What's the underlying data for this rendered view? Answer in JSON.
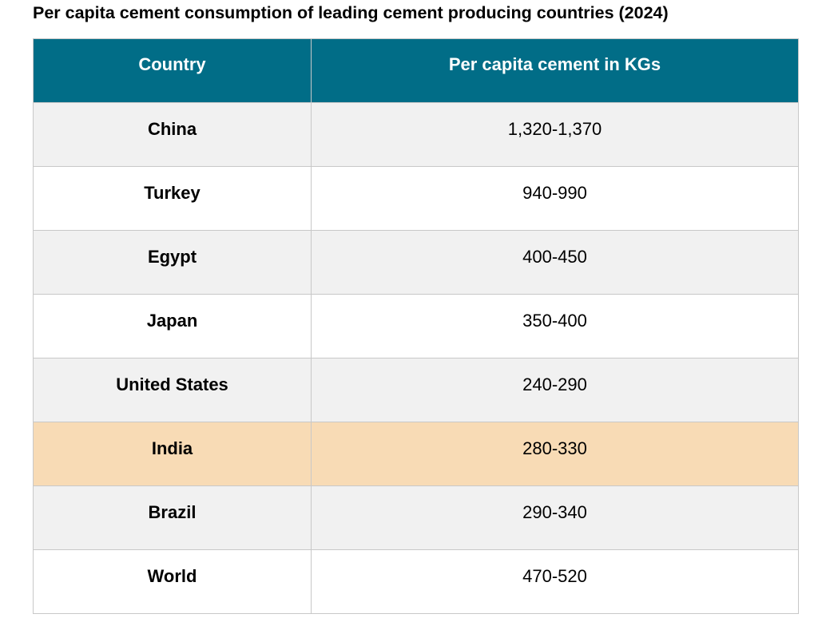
{
  "title": "Per capita cement consumption of leading cement producing countries (2024)",
  "colors": {
    "header_bg": "#016d87",
    "header_text": "#ffffff",
    "row_alt": "#f1f1f1",
    "row_plain": "#ffffff",
    "highlight": "#f8dbb5"
  },
  "chart_data": {
    "type": "table",
    "title": "Per capita cement consumption of leading cement producing countries (2024)",
    "columns": [
      "Country",
      "Per capita cement in KGs"
    ],
    "rows": [
      [
        "China",
        "1,320-1,370"
      ],
      [
        "Turkey",
        "940-990"
      ],
      [
        "Egypt",
        "400-450"
      ],
      [
        "Japan",
        "350-400"
      ],
      [
        "United States",
        "240-290"
      ],
      [
        "India",
        "280-330"
      ],
      [
        "Brazil",
        "290-340"
      ],
      [
        "World",
        "470-520"
      ]
    ],
    "highlighted_row": "India"
  }
}
